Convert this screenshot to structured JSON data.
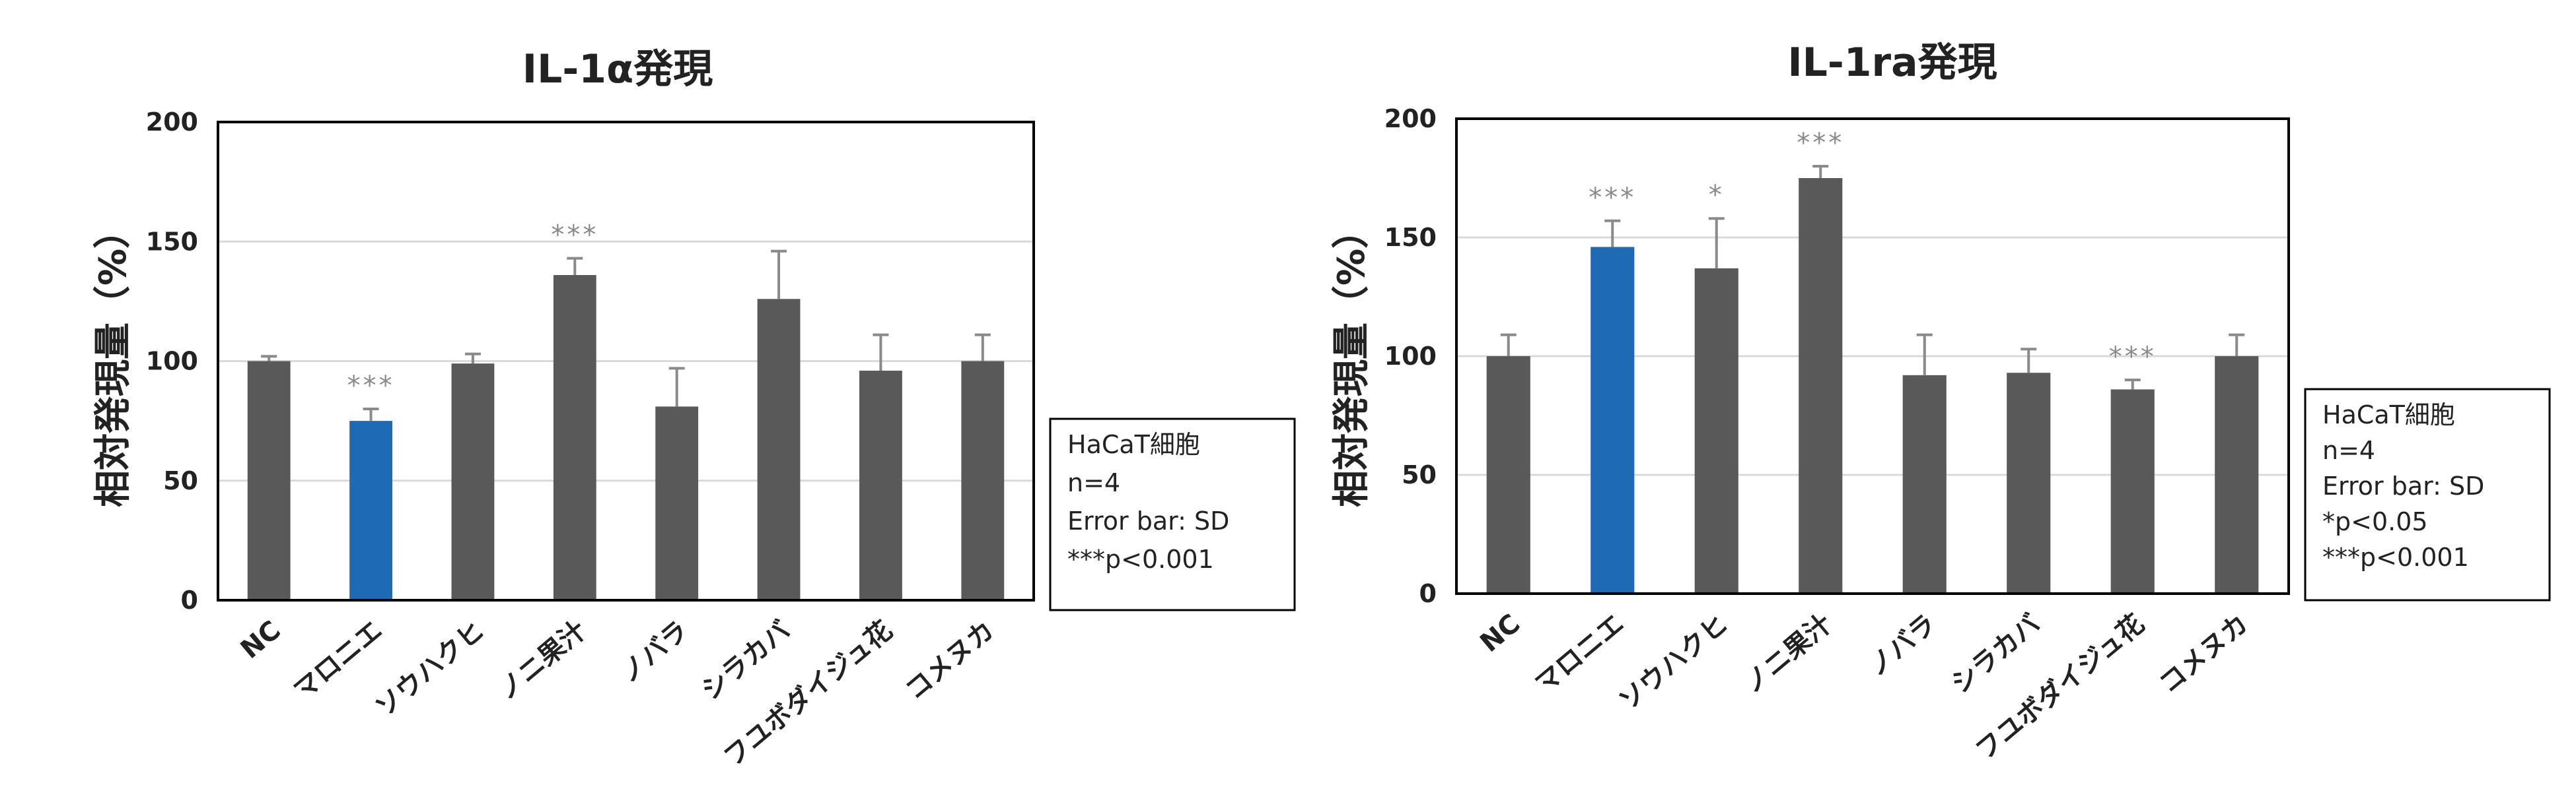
{
  "colors": {
    "bar_default": "#595959",
    "bar_highlight": "#1f6ab5",
    "error_bar": "#8a8a8a",
    "grid": "#d9d9d9",
    "frame": "#000000",
    "significance": "#8a8a8a"
  },
  "chart_data": [
    {
      "type": "bar",
      "title": "IL-1α発現",
      "ylabel": "相対発現量（%）",
      "xlabel": "",
      "ylim": [
        0,
        200
      ],
      "yticks": [
        0,
        50,
        100,
        150,
        200
      ],
      "grid": true,
      "categories": [
        "NC",
        "マロニエ",
        "ソウハクヒ",
        "ノニ果汁",
        "ノバラ",
        "シラカバ",
        "フユボダイジュ花",
        "コメヌカ"
      ],
      "values": [
        100,
        75,
        99,
        136,
        81,
        126,
        96,
        100
      ],
      "errors": [
        2,
        5,
        4,
        7,
        16,
        20,
        15,
        11
      ],
      "highlight_index": 1,
      "significance": [
        "",
        "***",
        "",
        "***",
        "",
        "",
        "",
        ""
      ],
      "legend": {
        "placement": "right",
        "lines": [
          "HaCaT細胞",
          "n=4",
          "Error bar: SD",
          "***p<0.001"
        ]
      }
    },
    {
      "type": "bar",
      "title": "IL-1ra発現",
      "ylabel": "相対発現量（%）",
      "xlabel": "",
      "ylim": [
        0,
        200
      ],
      "yticks": [
        0,
        50,
        100,
        150,
        200
      ],
      "grid": true,
      "categories": [
        "NC",
        "マロニエ",
        "ソウハクヒ",
        "ノニ果汁",
        "ノバラ",
        "シラカバ",
        "フユボダイジュ花",
        "コメヌカ"
      ],
      "values": [
        100,
        146,
        137,
        175,
        92,
        93,
        86,
        100
      ],
      "errors": [
        9,
        11,
        21,
        5,
        17,
        10,
        4,
        9
      ],
      "highlight_index": 1,
      "significance": [
        "",
        "***",
        "*",
        "***",
        "",
        "",
        "***",
        ""
      ],
      "legend": {
        "placement": "right",
        "lines": [
          "HaCaT細胞",
          "n=4",
          "Error bar: SD",
          "*p<0.05",
          "***p<0.001"
        ]
      }
    }
  ]
}
